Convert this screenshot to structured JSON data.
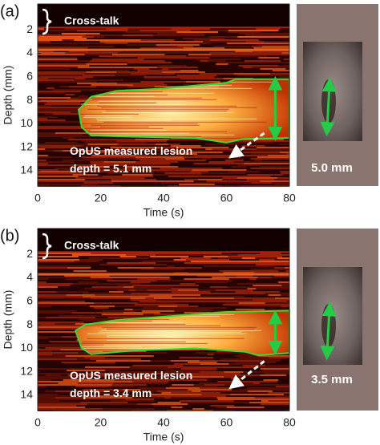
{
  "panels": [
    {
      "label": "(a)",
      "crosstalk": "Cross-talk",
      "annotation_line1": "OpUS measured lesion",
      "annotation_line2": "depth = 5.1 mm",
      "xlabel": "Time (s)",
      "ylabel": "Depth (mm)",
      "xlim": [
        0,
        80
      ],
      "ylim": [
        15.3,
        -0.2
      ],
      "xticks": [
        0,
        20,
        40,
        60,
        80
      ],
      "yticks": [
        2,
        4,
        6,
        8,
        10,
        12,
        14
      ],
      "photo_label": "5.0 mm"
    },
    {
      "label": "(b)",
      "crosstalk": "Cross-talk",
      "annotation_line1": "OpUS measured lesion",
      "annotation_line2": "depth = 3.4 mm",
      "xlabel": "Time (s)",
      "ylabel": "Depth (mm)",
      "xlim": [
        0,
        80
      ],
      "ylim": [
        15.3,
        -0.2
      ],
      "xticks": [
        0,
        20,
        40,
        60,
        80
      ],
      "yticks": [
        2,
        4,
        6,
        8,
        10,
        12,
        14
      ],
      "photo_label": "3.5 mm"
    }
  ]
}
